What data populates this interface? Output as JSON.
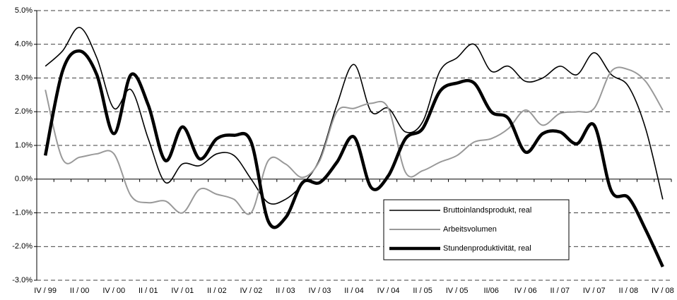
{
  "chart_data": {
    "type": "line",
    "categories": [
      "IV / 99",
      null,
      "II / 00",
      null,
      "IV / 00",
      null,
      "II / 01",
      null,
      "IV / 01",
      null,
      "II / 02",
      null,
      "IV / 02",
      null,
      "II / 03",
      null,
      "IV / 03",
      null,
      "II / 04",
      null,
      "IV / 04",
      null,
      "II / 05",
      null,
      "IV / 05",
      null,
      "II/06",
      null,
      "IV / 06",
      null,
      "II / 07",
      null,
      "IV / 07",
      null,
      "II / 08",
      null,
      "IV / 08"
    ],
    "series": [
      {
        "name": "Bruttoinlandsprodukt, real",
        "color": "#000000",
        "values": [
          3.35,
          3.8,
          4.5,
          3.6,
          2.1,
          2.65,
          1.2,
          -0.1,
          0.45,
          0.4,
          0.75,
          0.7,
          0.0,
          -0.7,
          -0.6,
          -0.15,
          0.6,
          2.2,
          3.4,
          2.0,
          2.1,
          1.4,
          1.7,
          3.2,
          3.6,
          4.0,
          3.2,
          3.35,
          2.9,
          3.0,
          3.35,
          3.1,
          3.75,
          3.1,
          2.75,
          1.5,
          -0.6
        ]
      },
      {
        "name": "Arbeitsvolumen",
        "color": "#999999",
        "values": [
          2.65,
          0.6,
          0.65,
          0.75,
          0.75,
          -0.5,
          -0.7,
          -0.65,
          -1.0,
          -0.3,
          -0.45,
          -0.6,
          -1.0,
          0.55,
          0.45,
          0.05,
          0.55,
          2.0,
          2.1,
          2.25,
          2.1,
          0.2,
          0.25,
          0.5,
          0.7,
          1.1,
          1.2,
          1.5,
          2.05,
          1.6,
          1.95,
          2.0,
          2.1,
          3.2,
          3.25,
          2.9,
          2.05
        ]
      },
      {
        "name": "Stundenproduktivität, real",
        "color": "#000000",
        "values": [
          0.7,
          3.2,
          3.8,
          3.1,
          1.35,
          3.1,
          2.2,
          0.55,
          1.55,
          0.6,
          1.2,
          1.3,
          1.1,
          -1.25,
          -1.15,
          -0.1,
          -0.1,
          0.5,
          1.25,
          -0.25,
          0.1,
          1.2,
          1.5,
          2.6,
          2.85,
          2.85,
          2.0,
          1.8,
          0.8,
          1.35,
          1.4,
          1.05,
          1.6,
          -0.35,
          -0.55,
          -1.5,
          -2.6
        ]
      }
    ],
    "ylim": [
      -3,
      5
    ],
    "yticks": [
      {
        "value": -3,
        "label": "-3.0%"
      },
      {
        "value": -2,
        "label": "-2.0%"
      },
      {
        "value": -1,
        "label": "-1.0%"
      },
      {
        "value": 0,
        "label": "0.0%"
      },
      {
        "value": 1,
        "label": "1.0%"
      },
      {
        "value": 2,
        "label": "2.0%"
      },
      {
        "value": 3,
        "label": "3.0%"
      },
      {
        "value": 4,
        "label": "4.0%"
      },
      {
        "value": 5,
        "label": "5.0%"
      }
    ],
    "grid": true
  }
}
